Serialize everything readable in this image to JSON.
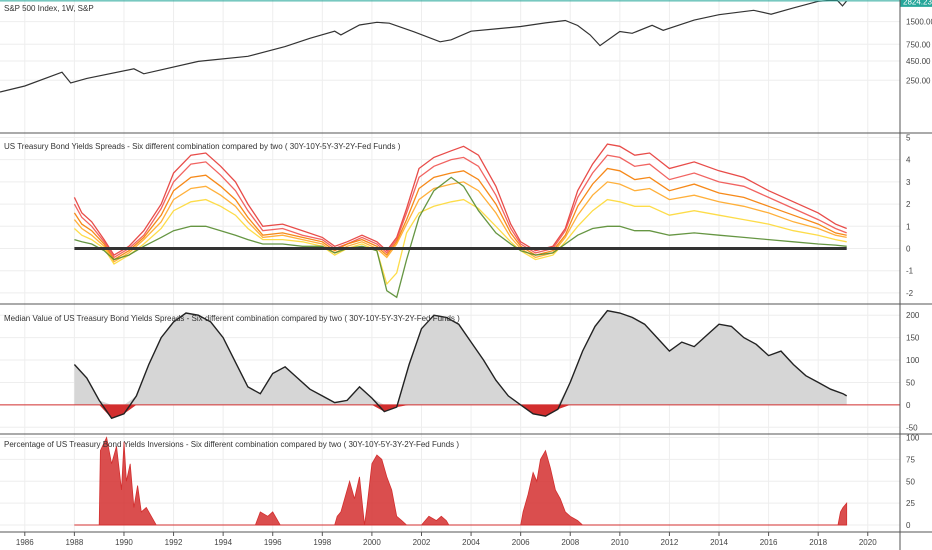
{
  "chart_data": [
    {
      "type": "line",
      "title": "S&P 500 Index, 1W, S&P",
      "ylim": [
        50,
        2900
      ],
      "y_ticks": [
        {
          "value": 250,
          "label": "250.00"
        },
        {
          "value": 450,
          "label": "450.00"
        },
        {
          "value": 750,
          "label": "750.00"
        },
        {
          "value": 1500,
          "label": "1500.00"
        }
      ],
      "last_value_label": "2824.23",
      "colors": {
        "line": "#333333",
        "last_value": "#26a69a"
      },
      "series": [
        {
          "x": [
            1985.0,
            1986.0,
            1987.5,
            1987.85,
            1988.5,
            1990.4,
            1990.8,
            1993.0,
            1995.0,
            1996.5,
            1997.5,
            1998.5,
            1998.75,
            1999.5,
            2000.2,
            2000.7,
            2001.7,
            2002.75,
            2003.2,
            2004.0,
            2005.0,
            2006.0,
            2007.0,
            2007.8,
            2008.3,
            2008.8,
            2009.2,
            2010.0,
            2010.5,
            2011.3,
            2011.75,
            2013.0,
            2014.0,
            2015.4,
            2016.1,
            2017.0,
            2018.0,
            2018.75,
            2018.98,
            2019.15
          ],
          "values": [
            175,
            210,
            320,
            230,
            265,
            355,
            305,
            445,
            520,
            700,
            900,
            1120,
            1000,
            1350,
            1470,
            1430,
            1100,
            810,
            860,
            1120,
            1200,
            1290,
            1440,
            1550,
            1330,
            1000,
            720,
            1110,
            1050,
            1340,
            1150,
            1570,
            1850,
            2120,
            1880,
            2280,
            2790,
            2920,
            2420,
            2824
          ]
        }
      ]
    },
    {
      "type": "line",
      "title": "US Treasury Bond Yields Spreads - Six different combination compared by two ( 30Y-10Y-5Y-3Y-2Y-Fed Funds )",
      "ylim": [
        -2.5,
        5.2
      ],
      "y_ticks": [
        -2,
        -1,
        0,
        1,
        2,
        3,
        4,
        5
      ],
      "x": [
        1988.0,
        1988.3,
        1988.7,
        1989.2,
        1989.6,
        1990.2,
        1990.8,
        1991.5,
        1992.0,
        1992.7,
        1993.3,
        1993.9,
        1994.5,
        1995.0,
        1995.6,
        1996.4,
        1997.2,
        1998.0,
        1998.5,
        1999.0,
        1999.6,
        2000.2,
        2000.6,
        2001.0,
        2001.4,
        2001.9,
        2002.5,
        2003.2,
        2003.7,
        2004.3,
        2005.0,
        2005.6,
        2006.0,
        2006.6,
        2007.3,
        2007.8,
        2008.3,
        2008.9,
        2009.5,
        2010.0,
        2010.6,
        2011.2,
        2012.0,
        2013.0,
        2014.0,
        2015.0,
        2016.0,
        2017.0,
        2018.0,
        2018.7,
        2019.15
      ],
      "series": [
        {
          "color": "#e53935",
          "values": [
            2.3,
            1.6,
            1.2,
            0.4,
            -0.3,
            0.1,
            0.8,
            2.0,
            3.4,
            4.2,
            4.3,
            3.7,
            3.0,
            2.0,
            1.0,
            1.1,
            0.8,
            0.5,
            0.1,
            0.3,
            0.6,
            0.3,
            -0.1,
            0.5,
            1.8,
            3.6,
            4.1,
            4.4,
            4.6,
            4.2,
            2.8,
            1.1,
            0.3,
            -0.1,
            0.1,
            0.9,
            2.6,
            3.8,
            4.7,
            4.6,
            4.2,
            4.3,
            3.6,
            3.9,
            3.5,
            3.2,
            2.6,
            2.1,
            1.6,
            1.1,
            0.9
          ]
        },
        {
          "color": "#ef5350",
          "values": [
            2.0,
            1.4,
            1.0,
            0.3,
            -0.4,
            0.0,
            0.6,
            1.8,
            3.0,
            3.8,
            3.9,
            3.3,
            2.6,
            1.7,
            0.8,
            0.9,
            0.6,
            0.4,
            0.0,
            0.2,
            0.5,
            0.2,
            -0.2,
            0.4,
            1.6,
            3.2,
            3.7,
            4.0,
            4.1,
            3.7,
            2.4,
            0.9,
            0.2,
            -0.2,
            0.0,
            0.8,
            2.3,
            3.4,
            4.2,
            4.1,
            3.7,
            3.8,
            3.1,
            3.4,
            3.0,
            2.8,
            2.3,
            1.8,
            1.3,
            0.9,
            0.7
          ]
        },
        {
          "color": "#f57c00",
          "values": [
            1.6,
            1.1,
            0.8,
            0.2,
            -0.5,
            -0.1,
            0.5,
            1.5,
            2.6,
            3.2,
            3.3,
            2.8,
            2.2,
            1.4,
            0.6,
            0.7,
            0.5,
            0.3,
            -0.1,
            0.2,
            0.4,
            0.1,
            -0.3,
            0.3,
            1.3,
            2.7,
            3.2,
            3.4,
            3.5,
            3.1,
            2.0,
            0.7,
            0.1,
            -0.3,
            -0.1,
            0.6,
            1.9,
            2.9,
            3.6,
            3.5,
            3.1,
            3.2,
            2.6,
            2.9,
            2.5,
            2.3,
            1.9,
            1.5,
            1.1,
            0.7,
            0.6
          ]
        },
        {
          "color": "#ffa726",
          "values": [
            1.3,
            0.9,
            0.6,
            0.1,
            -0.6,
            -0.2,
            0.4,
            1.2,
            2.2,
            2.7,
            2.8,
            2.4,
            1.9,
            1.2,
            0.5,
            0.6,
            0.4,
            0.2,
            -0.2,
            0.1,
            0.3,
            0.0,
            -0.4,
            0.2,
            1.1,
            2.2,
            2.7,
            2.9,
            3.0,
            2.6,
            1.6,
            0.5,
            0.0,
            -0.4,
            -0.2,
            0.5,
            1.5,
            2.4,
            3.0,
            2.9,
            2.6,
            2.7,
            2.2,
            2.4,
            2.1,
            1.9,
            1.6,
            1.2,
            0.9,
            0.6,
            0.5
          ]
        },
        {
          "color": "#fdd835",
          "values": [
            0.9,
            0.6,
            0.4,
            0.0,
            -0.7,
            -0.3,
            0.2,
            0.9,
            1.7,
            2.1,
            2.2,
            1.9,
            1.5,
            0.9,
            0.4,
            0.4,
            0.3,
            0.1,
            -0.3,
            0.0,
            0.2,
            -0.1,
            -1.6,
            -1.1,
            0.7,
            1.6,
            1.9,
            2.1,
            2.2,
            1.8,
            1.0,
            0.3,
            -0.1,
            -0.5,
            -0.3,
            0.3,
            1.0,
            1.7,
            2.2,
            2.1,
            1.9,
            1.9,
            1.5,
            1.7,
            1.5,
            1.3,
            1.1,
            0.8,
            0.6,
            0.4,
            0.3
          ]
        },
        {
          "color": "#558b2f",
          "values": [
            0.4,
            0.3,
            0.2,
            -0.1,
            -0.5,
            -0.3,
            0.1,
            0.5,
            0.8,
            1.0,
            1.0,
            0.8,
            0.6,
            0.4,
            0.2,
            0.2,
            0.1,
            0.1,
            -0.2,
            0.0,
            0.1,
            -0.1,
            -1.9,
            -2.2,
            -0.5,
            1.4,
            2.6,
            3.2,
            2.8,
            1.7,
            0.7,
            0.2,
            -0.1,
            -0.3,
            -0.2,
            0.2,
            0.6,
            0.9,
            1.0,
            1.0,
            0.8,
            0.8,
            0.6,
            0.7,
            0.6,
            0.5,
            0.4,
            0.3,
            0.2,
            0.15,
            0.1
          ]
        }
      ],
      "zero_line_color": "#333333"
    },
    {
      "type": "area",
      "title": "Median Value of US Treasury Bond Yields Spreads - Six different combination compared by two ( 30Y-10Y-5Y-3Y-2Y-Fed Funds )",
      "ylim": [
        -65,
        225
      ],
      "y_ticks": [
        -50,
        0,
        50,
        100,
        150,
        200
      ],
      "colors": {
        "positive_fill": "#d6d6d6",
        "negative_fill": "#d32f2f",
        "line": "#222222",
        "zero_line": "#d32f2f"
      },
      "x": [
        1988.0,
        1988.5,
        1989.0,
        1989.5,
        1990.0,
        1990.5,
        1991.0,
        1991.5,
        1992.0,
        1992.5,
        1993.0,
        1993.5,
        1994.0,
        1994.5,
        1995.0,
        1995.5,
        1996.0,
        1996.5,
        1997.0,
        1997.5,
        1998.0,
        1998.5,
        1999.0,
        1999.5,
        2000.0,
        2000.5,
        2001.0,
        2001.5,
        2002.0,
        2002.5,
        2003.0,
        2003.5,
        2004.0,
        2004.5,
        2005.0,
        2005.5,
        2006.0,
        2006.5,
        2007.0,
        2007.5,
        2008.0,
        2008.5,
        2009.0,
        2009.5,
        2010.0,
        2010.5,
        2011.0,
        2011.5,
        2012.0,
        2012.5,
        2013.0,
        2013.5,
        2014.0,
        2014.5,
        2015.0,
        2015.5,
        2016.0,
        2016.5,
        2017.0,
        2017.5,
        2018.0,
        2018.5,
        2019.0,
        2019.15
      ],
      "values": [
        90,
        60,
        10,
        -30,
        -20,
        20,
        90,
        150,
        185,
        205,
        200,
        185,
        150,
        95,
        40,
        25,
        70,
        85,
        60,
        35,
        20,
        5,
        10,
        40,
        15,
        -15,
        -5,
        90,
        170,
        200,
        195,
        180,
        140,
        100,
        55,
        20,
        0,
        -20,
        -25,
        -10,
        50,
        120,
        175,
        210,
        205,
        195,
        180,
        150,
        120,
        140,
        130,
        155,
        180,
        175,
        150,
        135,
        110,
        120,
        90,
        65,
        50,
        35,
        25,
        20
      ]
    },
    {
      "type": "area",
      "title": "Percentage of US Treasury Bond Yields Inversions - Six different combination compared by two ( 30Y-10Y-5Y-3Y-2Y-Fed Funds )",
      "ylim": [
        -8,
        104
      ],
      "y_ticks": [
        0,
        25,
        50,
        75,
        100
      ],
      "colors": {
        "fill": "#d32f2f",
        "baseline": "#d32f2f"
      },
      "x": [
        1988.0,
        1989.0,
        1989.05,
        1989.3,
        1989.5,
        1989.7,
        1989.9,
        1990.0,
        1990.1,
        1990.25,
        1990.4,
        1990.55,
        1990.7,
        1990.9,
        1991.3,
        1994.5,
        1995.3,
        1995.5,
        1995.8,
        1996.0,
        1996.3,
        1998.5,
        1998.6,
        1998.75,
        1998.95,
        1999.1,
        1999.3,
        1999.5,
        1999.7,
        1999.8,
        2000.0,
        2000.2,
        2000.4,
        2000.6,
        2000.8,
        2001.0,
        2001.2,
        2001.4,
        2001.7,
        2002.0,
        2002.3,
        2002.6,
        2002.8,
        2003.0,
        2003.1,
        2003.6,
        2003.7,
        2006.0,
        2006.1,
        2006.3,
        2006.5,
        2006.65,
        2006.8,
        2007.0,
        2007.2,
        2007.4,
        2007.6,
        2007.8,
        2008.0,
        2008.3,
        2008.5,
        2008.8,
        2009.0,
        2018.8,
        2018.9,
        2019.0,
        2019.15
      ],
      "values": [
        0,
        0,
        85,
        100,
        70,
        90,
        40,
        95,
        50,
        70,
        20,
        45,
        15,
        20,
        0,
        0,
        0,
        15,
        10,
        15,
        0,
        0,
        10,
        15,
        35,
        50,
        30,
        55,
        0,
        20,
        70,
        80,
        75,
        55,
        40,
        10,
        5,
        0,
        0,
        0,
        10,
        5,
        10,
        5,
        0,
        0,
        0,
        0,
        15,
        35,
        60,
        50,
        75,
        85,
        65,
        40,
        30,
        15,
        10,
        5,
        0,
        0,
        0,
        0,
        15,
        20,
        25
      ]
    }
  ],
  "x_axis": {
    "range": [
      1985.0,
      2021.3
    ],
    "ticks": [
      {
        "value": 1986,
        "label": "1986"
      },
      {
        "value": 1988,
        "label": "1988"
      },
      {
        "value": 1990,
        "label": "1990"
      },
      {
        "value": 1992,
        "label": "1992"
      },
      {
        "value": 1994,
        "label": "1994"
      },
      {
        "value": 1996,
        "label": "1996"
      },
      {
        "value": 1998,
        "label": "1998"
      },
      {
        "value": 2000,
        "label": "2000"
      },
      {
        "value": 2002,
        "label": "2002"
      },
      {
        "value": 2004,
        "label": "2004"
      },
      {
        "value": 2006,
        "label": "2006"
      },
      {
        "value": 2008,
        "label": "2008"
      },
      {
        "value": 2010,
        "label": "2010"
      },
      {
        "value": 2012,
        "label": "2012"
      },
      {
        "value": 2014,
        "label": "2014"
      },
      {
        "value": 2016,
        "label": "2016"
      },
      {
        "value": 2018,
        "label": "2018"
      },
      {
        "value": 2020,
        "label": "2020"
      }
    ]
  },
  "theme": {
    "grid": "#eeeeee",
    "pane_border": "#555555",
    "axis_text": "#444444",
    "last_value_bg": "#26a69a"
  }
}
